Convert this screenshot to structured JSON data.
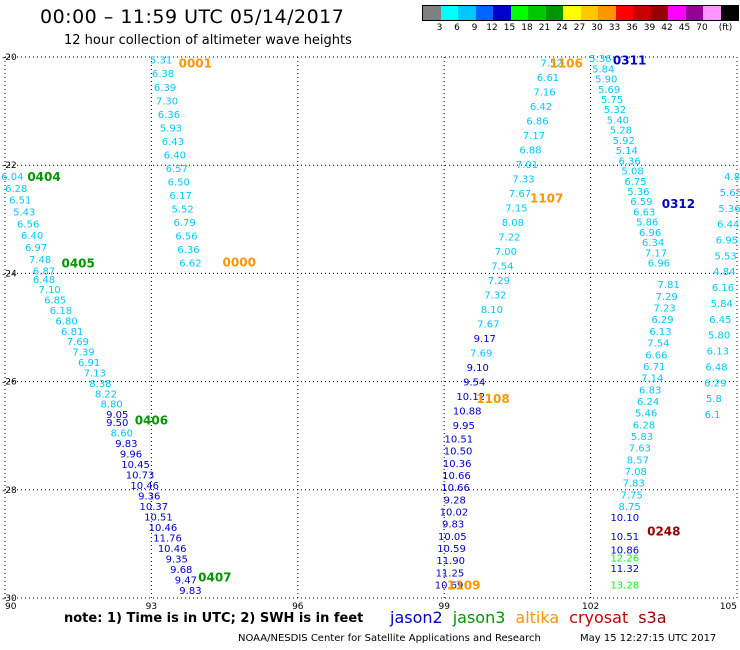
{
  "title": "00:00 – 11:59 UTC 05/14/2017",
  "subtitle": "12 hour collection of altimeter wave heights",
  "legend": {
    "colors": [
      "#808080",
      "#00ffff",
      "#00c8ff",
      "#0064ff",
      "#0000c8",
      "#00ff00",
      "#00c800",
      "#009600",
      "#ffff00",
      "#ffc800",
      "#ff9600",
      "#ff0000",
      "#c80000",
      "#960000",
      "#ff00ff",
      "#960096",
      "#ff96ff",
      "#000000"
    ],
    "labels": [
      "3",
      "6",
      "9",
      "12",
      "15",
      "18",
      "21",
      "24",
      "27",
      "30",
      "33",
      "36",
      "39",
      "42",
      "45",
      "70",
      "(ft)"
    ]
  },
  "axes": {
    "x_ticks": [
      "90",
      "93",
      "96",
      "99",
      "102",
      "105"
    ],
    "y_ticks": [
      "-20",
      "-22",
      "-24",
      "-26",
      "-28",
      "-30"
    ],
    "xlim": [
      90,
      105
    ],
    "ylim": [
      -30,
      -20
    ]
  },
  "chart_data": {
    "type": "scatter",
    "tracks": [
      {
        "time": "0001",
        "time_color": "#ff9600",
        "time_x": 93.9,
        "time_y": -20.1,
        "start": [
          93.2,
          -20.05
        ],
        "end": [
          93.8,
          -23.8
        ],
        "values": [
          "5.31",
          "6.38",
          "6.39",
          "7.30",
          "6.36",
          "5.93",
          "6.43",
          "6.40",
          "6.57",
          "6.50",
          "6.17",
          "5.52",
          "6.79",
          "6.56",
          "6.36",
          "6.62"
        ]
      },
      {
        "time": "0000",
        "time_color": "#ff9600",
        "time_x": 94.8,
        "time_y": -23.78,
        "start": [
          0,
          0
        ],
        "end": [
          0,
          0
        ],
        "values": []
      },
      {
        "time": "0404",
        "time_color": "#009600",
        "time_x": 90.8,
        "time_y": -22.2,
        "start": [
          90.15,
          -22.2
        ],
        "end": [
          90.8,
          -23.95
        ],
        "values": [
          "6.04",
          "6.28",
          "6.51",
          "5.43",
          "6.56",
          "6.40",
          "6.97",
          "7.48",
          "6.87"
        ]
      },
      {
        "time": "0405",
        "time_color": "#009600",
        "time_x": 91.5,
        "time_y": -23.8,
        "start": [
          90.8,
          -24.1
        ],
        "end": [
          92.3,
          -26.6
        ],
        "values": [
          "6.48",
          "7.10",
          "6.85",
          "6.18",
          "6.80",
          "6.81",
          "7.69",
          "7.39",
          "6.91",
          "7.13",
          "8.38",
          "8.22",
          "8.80",
          "9.05"
        ]
      },
      {
        "time": "0406",
        "time_color": "#009600",
        "time_x": 93.0,
        "time_y": -26.7,
        "start": [
          92.3,
          -26.75
        ],
        "end": [
          93.8,
          -29.85
        ],
        "values": [
          "9.50",
          "8.60",
          "9.83",
          "9.96",
          "10.45",
          "10.73",
          "10.46",
          "9.36",
          "10.37",
          "10.51",
          "10.46",
          "11.76",
          "10.46",
          "9.35",
          "9.68",
          "9.47",
          "9.83"
        ]
      },
      {
        "time": "0407",
        "time_color": "#009600",
        "time_x": 94.3,
        "time_y": -29.6,
        "start": [
          0,
          0
        ],
        "end": [
          0,
          0
        ],
        "values": []
      },
      {
        "time": "1106",
        "time_color": "#ff9600",
        "time_x": 101.5,
        "time_y": -20.1,
        "start": [
          101.2,
          -20.1
        ],
        "end": [
          99.4,
          -26.8
        ],
        "values": [
          "7.52",
          "6.61",
          "7.16",
          "6.42",
          "6.86",
          "7.17",
          "6.88",
          "7.01",
          "7.33",
          "7.67",
          "7.15",
          "8.08",
          "7.22",
          "7.00",
          "7.54",
          "7.29",
          "7.32",
          "8.10",
          "7.67",
          "9.17",
          "7.69",
          "9.10",
          "9.54",
          "10.12",
          "10.88",
          "9.95"
        ]
      },
      {
        "time": "1107",
        "time_color": "#ff9600",
        "time_x": 101.1,
        "time_y": -22.6,
        "start": [
          0,
          0
        ],
        "end": [
          0,
          0
        ],
        "values": []
      },
      {
        "time": "1108",
        "time_color": "#ff9600",
        "time_x": 100.0,
        "time_y": -26.3,
        "start": [
          99.3,
          -27.05
        ],
        "end": [
          99.1,
          -29.75
        ],
        "values": [
          "10.51",
          "10.50",
          "10.36",
          "10.66",
          "10.66",
          "9.28",
          "10.02",
          "9.83",
          "10.05",
          "10.59",
          "11.90",
          "11.25",
          "10.69"
        ]
      },
      {
        "time": "1109",
        "time_color": "#ff9600",
        "time_x": 99.4,
        "time_y": -29.75,
        "start": [
          0,
          0
        ],
        "end": [
          0,
          0
        ],
        "values": []
      },
      {
        "time": "0311",
        "time_color": "#0000c8",
        "time_x": 102.8,
        "time_y": -20.05,
        "start": [
          102.2,
          -20.02
        ],
        "end": [
          103.4,
          -23.8
        ],
        "values": [
          "5.36",
          "5.84",
          "5.90",
          "5.69",
          "5.75",
          "5.32",
          "5.40",
          "5.28",
          "5.92",
          "5.14",
          "6.36",
          "5.08",
          "6.75",
          "5.36",
          "6.59",
          "6.63",
          "5.86",
          "6.96",
          "6.34",
          "7.17",
          "6.96"
        ]
      },
      {
        "time": "0312",
        "time_color": "#0000c8",
        "time_x": 103.8,
        "time_y": -22.7,
        "start": [
          0,
          0
        ],
        "end": [
          0,
          0
        ],
        "values": []
      },
      {
        "time": "",
        "time_color": "#00c8ff",
        "time_x": 0,
        "time_y": 0,
        "start": [
          103.6,
          -24.2
        ],
        "end": [
          102.8,
          -28.3
        ],
        "values": [
          "7.81",
          "7.29",
          "7.23",
          "6.29",
          "6.13",
          "7.54",
          "6.66",
          "6.71",
          "7.14",
          "6.83",
          "6.24",
          "5.46",
          "6.28",
          "5.83",
          "7.63",
          "8.57",
          "7.08",
          "7.83",
          "7.75",
          "8.75"
        ]
      },
      {
        "time": "0248",
        "time_color": "#960000",
        "time_x": 103.5,
        "time_y": -28.75,
        "start": [
          102.7,
          -28.5
        ],
        "end": [
          102.7,
          -28.85
        ],
        "values": [
          "10.10",
          "10.51"
        ]
      },
      {
        "time": "",
        "time_color": "#0000c8",
        "time_x": 0,
        "time_y": 0,
        "start": [
          102.7,
          -29.1
        ],
        "end": [
          102.7,
          -29.45
        ],
        "values": [
          "10.86",
          "11.32"
        ]
      },
      {
        "time": "",
        "time_color": "#00ff00",
        "time_x": 0,
        "time_y": 0,
        "start": [
          102.7,
          -29.25
        ],
        "end": [
          102.7,
          -29.75
        ],
        "values": [
          "12.26",
          "13.28"
        ]
      },
      {
        "time": "",
        "time_color": "#00c8ff",
        "time_x": 0,
        "time_y": 0,
        "start": [
          104.9,
          -22.2
        ],
        "end": [
          104.5,
          -26.6
        ],
        "values": [
          "4.8",
          "5.65",
          "5.36",
          "6.44",
          "6.95",
          "5.53",
          "4.84",
          "6.16",
          "5.84",
          "6.45",
          "5.80",
          "6.13",
          "6.48",
          "6.29",
          "5.8",
          "6.1"
        ]
      }
    ]
  },
  "footer": {
    "note": "note:  1) Time is in UTC; 2) SWH is in feet",
    "satellites": [
      {
        "name": "jason2",
        "color": "#0000c8"
      },
      {
        "name": "jason3",
        "color": "#009600"
      },
      {
        "name": "altika",
        "color": "#ff9600"
      },
      {
        "name": "cryosat",
        "color": "#c80000"
      },
      {
        "name": "s3a",
        "color": "#960000"
      }
    ],
    "credit": "NOAA/NESDIS Center for Satellite Applications and Research",
    "stamp": "May 15 12:27:15 UTC 2017"
  }
}
